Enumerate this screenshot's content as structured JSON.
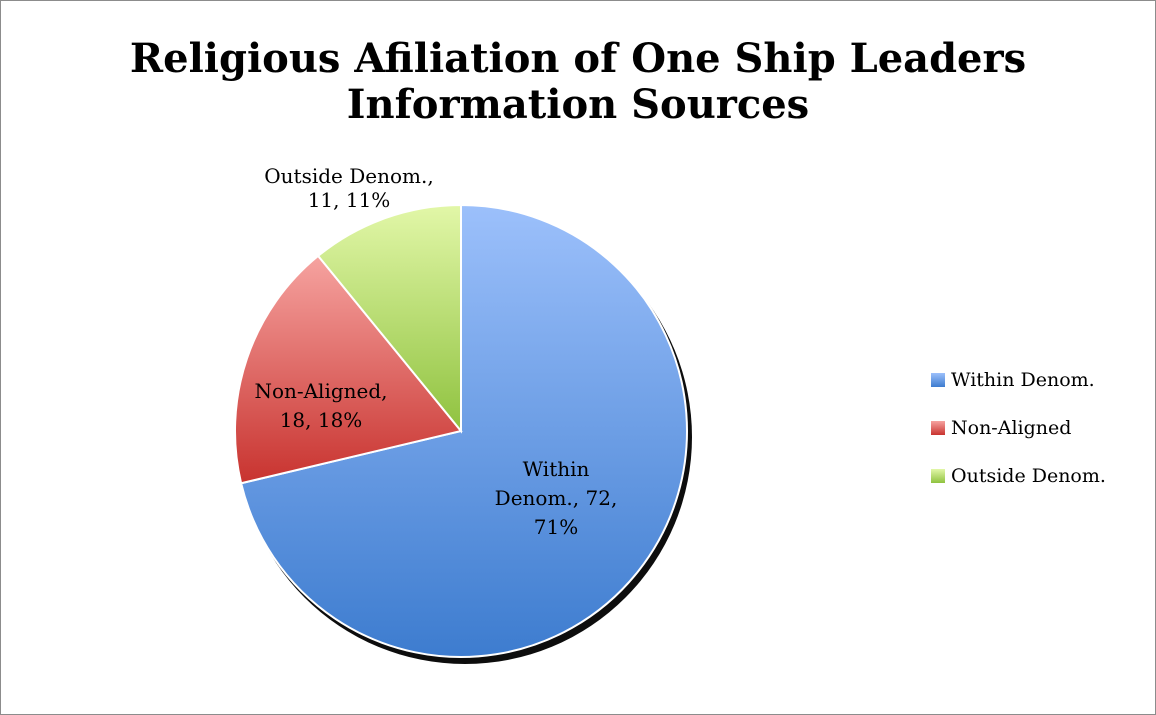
{
  "chart_data": {
    "type": "pie",
    "title": "Religious Afiliation of One Ship Leaders Information Sources",
    "title_lines": [
      "Religious Afiliation of One Ship Leaders",
      "Information Sources"
    ],
    "categories": [
      "Within Denom.",
      "Non-Aligned",
      "Outside Denom."
    ],
    "values": [
      72,
      18,
      11
    ],
    "percents": [
      "71%",
      "18%",
      "11%"
    ],
    "data_labels": [
      [
        "Within",
        "Denom., 72,",
        "71%"
      ],
      [
        "Non-Aligned,",
        "18, 18%"
      ],
      [
        "Outside Denom.,",
        "11, 11%"
      ]
    ],
    "colors": [
      "#5b8fe0",
      "#e05a57",
      "#a6d35a"
    ],
    "legend_position": "right"
  }
}
